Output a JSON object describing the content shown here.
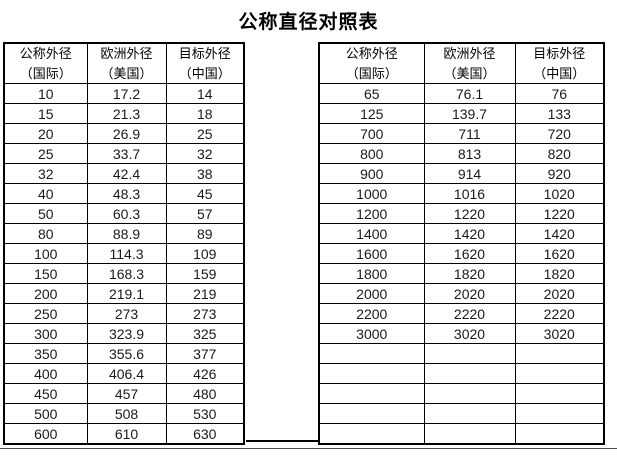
{
  "title": "公称直径对照表",
  "tables": {
    "left": {
      "headers": [
        {
          "line1": "公称外径",
          "line2": "（国际）"
        },
        {
          "line1": "欧洲外径",
          "line2": "（美国）"
        },
        {
          "line1": "目标外径",
          "line2": "（中国）"
        }
      ],
      "rows": [
        [
          "10",
          "17.2",
          "14"
        ],
        [
          "15",
          "21.3",
          "18"
        ],
        [
          "20",
          "26.9",
          "25"
        ],
        [
          "25",
          "33.7",
          "32"
        ],
        [
          "32",
          "42.4",
          "38"
        ],
        [
          "40",
          "48.3",
          "45"
        ],
        [
          "50",
          "60.3",
          "57"
        ],
        [
          "80",
          "88.9",
          "89"
        ],
        [
          "100",
          "114.3",
          "109"
        ],
        [
          "150",
          "168.3",
          "159"
        ],
        [
          "200",
          "219.1",
          "219"
        ],
        [
          "250",
          "273",
          "273"
        ],
        [
          "300",
          "323.9",
          "325"
        ],
        [
          "350",
          "355.6",
          "377"
        ],
        [
          "400",
          "406.4",
          "426"
        ],
        [
          "450",
          "457",
          "480"
        ],
        [
          "500",
          "508",
          "530"
        ],
        [
          "600",
          "610",
          "630"
        ]
      ]
    },
    "right": {
      "headers": [
        {
          "line1": "公称外径",
          "line2": "（国际）"
        },
        {
          "line1": "欧洲外径",
          "line2": "（美国）"
        },
        {
          "line1": "目标外径",
          "line2": "（中国）"
        }
      ],
      "rows": [
        [
          "65",
          "76.1",
          "76"
        ],
        [
          "125",
          "139.7",
          "133"
        ],
        [
          "700",
          "711",
          "720"
        ],
        [
          "800",
          "813",
          "820"
        ],
        [
          "900",
          "914",
          "920"
        ],
        [
          "1000",
          "1016",
          "1020"
        ],
        [
          "1200",
          "1220",
          "1220"
        ],
        [
          "1400",
          "1420",
          "1420"
        ],
        [
          "1600",
          "1620",
          "1620"
        ],
        [
          "1800",
          "1820",
          "1820"
        ],
        [
          "2000",
          "2020",
          "2020"
        ],
        [
          "2200",
          "2220",
          "2220"
        ],
        [
          "3000",
          "3020",
          "3020"
        ],
        [
          "",
          "",
          ""
        ],
        [
          "",
          "",
          ""
        ],
        [
          "",
          "",
          ""
        ],
        [
          "",
          "",
          ""
        ],
        [
          "",
          "",
          ""
        ]
      ]
    }
  }
}
